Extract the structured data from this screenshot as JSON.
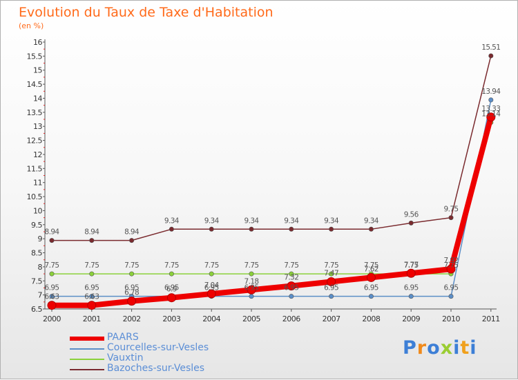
{
  "header": {
    "title": "Evolution du Taux de Taxe d'Habitation",
    "subtitle": "(en %)"
  },
  "logo": {
    "text": "Proxiti",
    "letter_colors": [
      "#3d7fd6",
      "#f08a1c",
      "#3d7fd6",
      "#9acd32",
      "#3d7fd6",
      "#f0a01c",
      "#3d7fd6"
    ]
  },
  "chart_data": {
    "type": "line",
    "title": "Evolution du Taux de Taxe d'Habitation",
    "ylabel": "(en %)",
    "x": [
      "2000",
      "2001",
      "2002",
      "2003",
      "2004",
      "2005",
      "2006",
      "2007",
      "2008",
      "2009",
      "2010",
      "2011"
    ],
    "ylim": [
      6.5,
      16
    ],
    "yticks": [
      "6.5",
      "7",
      "7.5",
      "8",
      "8.5",
      "9",
      "9.5",
      "10",
      "10.5",
      "11",
      "11.5",
      "12",
      "12.5",
      "13",
      "13.5",
      "14",
      "14.5",
      "15",
      "15.5",
      "16"
    ],
    "grid": false,
    "legend_position": "bottom-left",
    "series": [
      {
        "name": "PAARS",
        "color": "#ee0000",
        "values": [
          6.63,
          6.63,
          6.78,
          6.9,
          7.04,
          7.18,
          7.32,
          7.47,
          7.62,
          7.77,
          7.92,
          13.33
        ],
        "labels": [
          "6.63",
          "6.63",
          "6.78",
          "6.9",
          "7.04",
          "7.18",
          "7.32",
          "7.47",
          "7.62",
          "7.77",
          "7.92",
          "13.33"
        ]
      },
      {
        "name": "Courcelles-sur-Vesles",
        "color": "#5b8ec7",
        "values": [
          6.95,
          6.95,
          6.95,
          6.95,
          6.95,
          6.95,
          6.95,
          6.95,
          6.95,
          6.95,
          6.95,
          13.94
        ],
        "labels": [
          "6.95",
          "6.95",
          "6.95",
          "6.95",
          "6.95",
          "6.95",
          "6.95",
          "6.95",
          "6.95",
          "6.95",
          "6.95",
          "13.94"
        ]
      },
      {
        "name": "Vauxtin",
        "color": "#8bd13a",
        "values": [
          7.75,
          7.75,
          7.75,
          7.75,
          7.75,
          7.75,
          7.75,
          7.75,
          7.75,
          7.75,
          7.75,
          13.14
        ],
        "labels": [
          "7.75",
          "7.75",
          "7.75",
          "7.75",
          "7.75",
          "7.75",
          "7.75",
          "7.75",
          "7.75",
          "7.75",
          "7.75",
          "13.14"
        ]
      },
      {
        "name": "Bazoches-sur-Vesles",
        "color": "#7a2a2e",
        "values": [
          8.94,
          8.94,
          8.94,
          9.34,
          9.34,
          9.34,
          9.34,
          9.34,
          9.34,
          9.56,
          9.75,
          15.51
        ],
        "labels": [
          "8.94",
          "8.94",
          "8.94",
          "9.34",
          "9.34",
          "9.34",
          "9.34",
          "9.34",
          "9.34",
          "9.56",
          "9.75",
          "15.51"
        ]
      }
    ]
  }
}
